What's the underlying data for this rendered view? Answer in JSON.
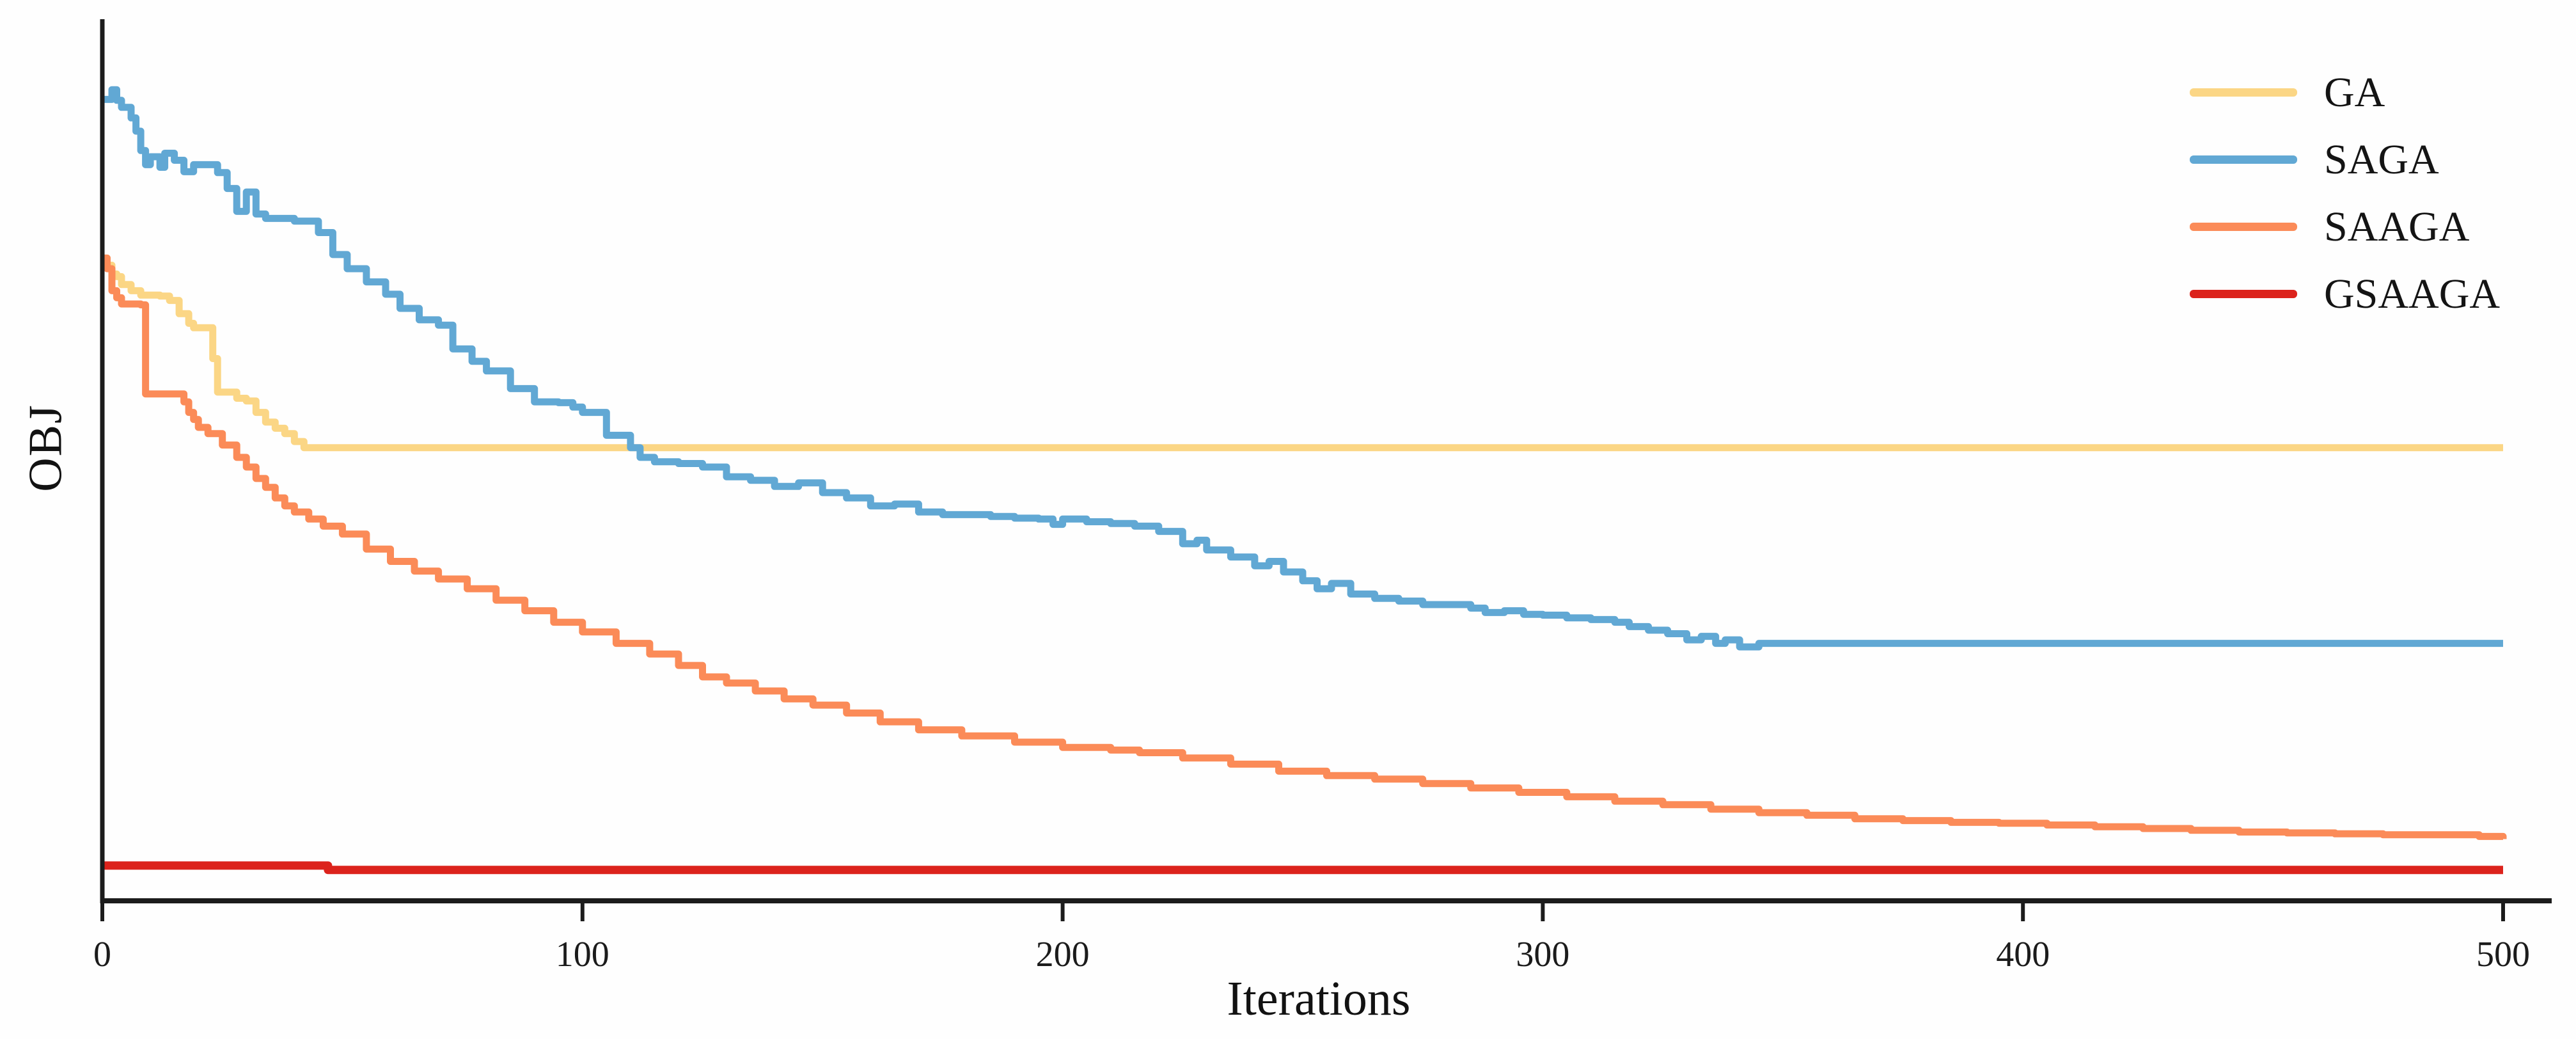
{
  "figure": {
    "y_axis_label": "OBJ",
    "x_axis_label": "Iterations",
    "background_color": "#fefefe",
    "axis_color": "#1c1c1c",
    "text_color": "#141414"
  },
  "legend": {
    "position": "upper-right",
    "items": [
      {
        "label": "GA",
        "color": "#fbd685"
      },
      {
        "label": "SAGA",
        "color": "#61a8d4"
      },
      {
        "label": "SAAGA",
        "color": "#fb8b58"
      },
      {
        "label": "GSAAGA",
        "color": "#dc231c"
      }
    ]
  },
  "chart_data": {
    "type": "line",
    "title": "",
    "xlabel": "Iterations",
    "ylabel": "OBJ",
    "x_ticks": [
      0,
      100,
      200,
      300,
      400,
      500
    ],
    "xlim": [
      0,
      500
    ],
    "ylim": [
      0,
      100
    ],
    "y_ticks_shown": false,
    "y_units": "arbitrary objective value (y axis has no tick labels in source figure)",
    "grid": false,
    "line_style": "step-after",
    "legend_position": "upper right",
    "series": [
      {
        "name": "GA",
        "color": "#fbd685",
        "stroke_width": 11,
        "points": [
          [
            0,
            72.9
          ],
          [
            1,
            72.1
          ],
          [
            2,
            71.1
          ],
          [
            3,
            70.8
          ],
          [
            4,
            69.9
          ],
          [
            6,
            69.2
          ],
          [
            8,
            68.7
          ],
          [
            12,
            68.6
          ],
          [
            14,
            68.1
          ],
          [
            16,
            66.6
          ],
          [
            18,
            65.5
          ],
          [
            19,
            65.0
          ],
          [
            22,
            65.0
          ],
          [
            23,
            61.5
          ],
          [
            24,
            57.7
          ],
          [
            27,
            57.7
          ],
          [
            28,
            57.0
          ],
          [
            30,
            56.7
          ],
          [
            32,
            55.4
          ],
          [
            34,
            54.3
          ],
          [
            36,
            53.6
          ],
          [
            38,
            53.0
          ],
          [
            40,
            52.1
          ],
          [
            42,
            51.4
          ],
          [
            60,
            51.4
          ],
          [
            100,
            51.4
          ],
          [
            150,
            51.4
          ],
          [
            200,
            51.4
          ],
          [
            250,
            51.4
          ],
          [
            300,
            51.4
          ],
          [
            350,
            51.4
          ],
          [
            400,
            51.4
          ],
          [
            450,
            51.4
          ],
          [
            500,
            51.4
          ]
        ]
      },
      {
        "name": "SAGA",
        "color": "#61a8d4",
        "stroke_width": 11,
        "points": [
          [
            0,
            90.9
          ],
          [
            2,
            92.0
          ],
          [
            3,
            90.8
          ],
          [
            4,
            90.0
          ],
          [
            6,
            88.8
          ],
          [
            7,
            87.3
          ],
          [
            8,
            85.1
          ],
          [
            9,
            83.5
          ],
          [
            10,
            84.4
          ],
          [
            12,
            83.2
          ],
          [
            13,
            84.8
          ],
          [
            15,
            84.0
          ],
          [
            17,
            82.7
          ],
          [
            19,
            83.5
          ],
          [
            22,
            83.5
          ],
          [
            24,
            82.6
          ],
          [
            26,
            80.8
          ],
          [
            28,
            78.2
          ],
          [
            30,
            80.4
          ],
          [
            32,
            77.9
          ],
          [
            34,
            77.4
          ],
          [
            38,
            77.4
          ],
          [
            40,
            77.1
          ],
          [
            45,
            75.8
          ],
          [
            48,
            73.3
          ],
          [
            51,
            71.7
          ],
          [
            55,
            70.2
          ],
          [
            59,
            68.8
          ],
          [
            62,
            67.2
          ],
          [
            66,
            65.9
          ],
          [
            70,
            65.3
          ],
          [
            73,
            62.6
          ],
          [
            77,
            61.2
          ],
          [
            80,
            60.1
          ],
          [
            85,
            58.1
          ],
          [
            90,
            56.6
          ],
          [
            95,
            56.5
          ],
          [
            98,
            56.0
          ],
          [
            100,
            55.4
          ],
          [
            105,
            52.8
          ],
          [
            110,
            51.4
          ],
          [
            112,
            50.3
          ],
          [
            115,
            49.8
          ],
          [
            120,
            49.6
          ],
          [
            125,
            49.2
          ],
          [
            130,
            48.1
          ],
          [
            135,
            47.7
          ],
          [
            140,
            47.0
          ],
          [
            145,
            47.4
          ],
          [
            150,
            46.3
          ],
          [
            155,
            45.7
          ],
          [
            160,
            44.8
          ],
          [
            165,
            45.0
          ],
          [
            170,
            44.1
          ],
          [
            175,
            43.8
          ],
          [
            185,
            43.6
          ],
          [
            190,
            43.4
          ],
          [
            195,
            43.3
          ],
          [
            198,
            42.7
          ],
          [
            200,
            43.3
          ],
          [
            205,
            43.0
          ],
          [
            210,
            42.8
          ],
          [
            215,
            42.5
          ],
          [
            220,
            41.9
          ],
          [
            225,
            40.5
          ],
          [
            228,
            40.9
          ],
          [
            230,
            39.8
          ],
          [
            235,
            39.0
          ],
          [
            240,
            38.0
          ],
          [
            243,
            38.5
          ],
          [
            246,
            37.3
          ],
          [
            250,
            36.3
          ],
          [
            253,
            35.4
          ],
          [
            256,
            36.0
          ],
          [
            260,
            34.8
          ],
          [
            265,
            34.3
          ],
          [
            270,
            34.0
          ],
          [
            275,
            33.6
          ],
          [
            280,
            33.6
          ],
          [
            285,
            33.2
          ],
          [
            288,
            32.7
          ],
          [
            292,
            32.9
          ],
          [
            296,
            32.5
          ],
          [
            300,
            32.4
          ],
          [
            305,
            32.1
          ],
          [
            310,
            31.9
          ],
          [
            315,
            31.6
          ],
          [
            318,
            31.1
          ],
          [
            322,
            30.7
          ],
          [
            326,
            30.3
          ],
          [
            330,
            29.6
          ],
          [
            333,
            30.0
          ],
          [
            336,
            29.2
          ],
          [
            338,
            29.6
          ],
          [
            341,
            28.8
          ],
          [
            345,
            29.2
          ],
          [
            350,
            29.2
          ],
          [
            400,
            29.2
          ],
          [
            450,
            29.2
          ],
          [
            500,
            29.2
          ]
        ]
      },
      {
        "name": "SAAGA",
        "color": "#fb8b58",
        "stroke_width": 11,
        "points": [
          [
            0,
            72.9
          ],
          [
            1,
            71.7
          ],
          [
            2,
            69.2
          ],
          [
            3,
            68.4
          ],
          [
            4,
            67.7
          ],
          [
            8,
            67.6
          ],
          [
            9,
            57.5
          ],
          [
            16,
            57.5
          ],
          [
            17,
            56.6
          ],
          [
            18,
            55.4
          ],
          [
            19,
            54.6
          ],
          [
            20,
            53.7
          ],
          [
            22,
            53.0
          ],
          [
            25,
            51.7
          ],
          [
            28,
            50.3
          ],
          [
            30,
            49.2
          ],
          [
            32,
            47.9
          ],
          [
            34,
            46.9
          ],
          [
            36,
            45.7
          ],
          [
            38,
            44.8
          ],
          [
            40,
            44.1
          ],
          [
            43,
            43.3
          ],
          [
            46,
            42.5
          ],
          [
            50,
            41.6
          ],
          [
            55,
            39.9
          ],
          [
            60,
            38.5
          ],
          [
            65,
            37.4
          ],
          [
            70,
            36.5
          ],
          [
            76,
            35.4
          ],
          [
            82,
            34.1
          ],
          [
            88,
            32.9
          ],
          [
            94,
            31.6
          ],
          [
            100,
            30.5
          ],
          [
            107,
            29.2
          ],
          [
            114,
            28.0
          ],
          [
            120,
            26.7
          ],
          [
            125,
            25.4
          ],
          [
            130,
            24.7
          ],
          [
            136,
            23.8
          ],
          [
            142,
            22.9
          ],
          [
            148,
            22.2
          ],
          [
            155,
            21.3
          ],
          [
            162,
            20.3
          ],
          [
            170,
            19.4
          ],
          [
            179,
            18.7
          ],
          [
            190,
            18.0
          ],
          [
            200,
            17.4
          ],
          [
            210,
            17.1
          ],
          [
            216,
            16.8
          ],
          [
            225,
            16.2
          ],
          [
            235,
            15.5
          ],
          [
            245,
            14.7
          ],
          [
            255,
            14.2
          ],
          [
            265,
            13.8
          ],
          [
            275,
            13.3
          ],
          [
            285,
            12.8
          ],
          [
            295,
            12.3
          ],
          [
            305,
            11.8
          ],
          [
            315,
            11.3
          ],
          [
            325,
            10.9
          ],
          [
            335,
            10.4
          ],
          [
            345,
            10.0
          ],
          [
            355,
            9.7
          ],
          [
            365,
            9.3
          ],
          [
            375,
            9.1
          ],
          [
            385,
            8.9
          ],
          [
            395,
            8.8
          ],
          [
            405,
            8.6
          ],
          [
            415,
            8.4
          ],
          [
            425,
            8.2
          ],
          [
            435,
            8.0
          ],
          [
            445,
            7.8
          ],
          [
            455,
            7.7
          ],
          [
            465,
            7.6
          ],
          [
            475,
            7.5
          ],
          [
            485,
            7.5
          ],
          [
            495,
            7.3
          ],
          [
            500,
            7.0
          ]
        ]
      },
      {
        "name": "GSAAGA",
        "color": "#dc231c",
        "stroke_width": 13,
        "points": [
          [
            0,
            4.0
          ],
          [
            46,
            4.0
          ],
          [
            47,
            3.5
          ],
          [
            500,
            3.5
          ]
        ]
      }
    ]
  }
}
